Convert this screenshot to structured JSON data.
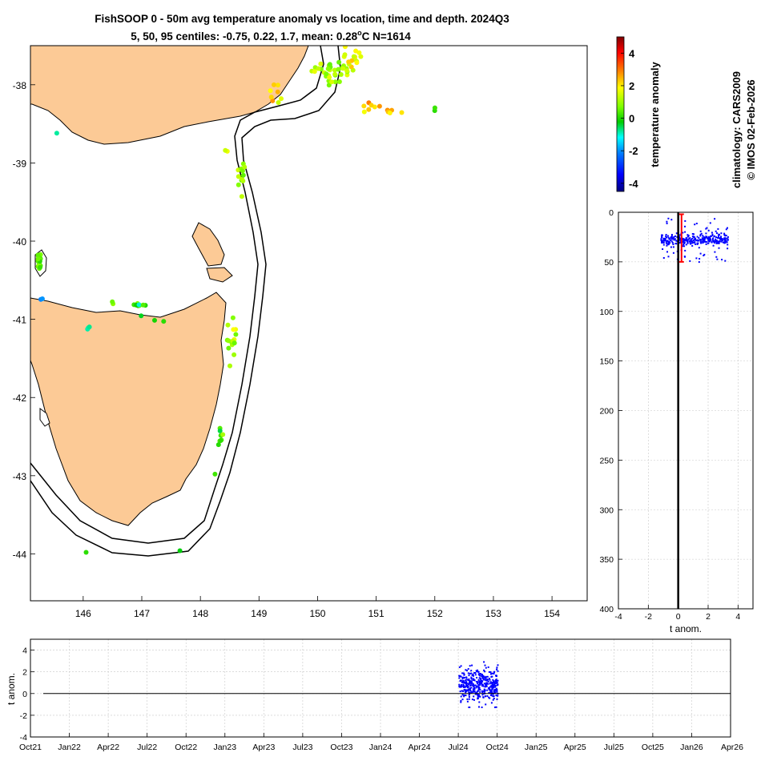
{
  "title": {
    "line1": "FishSOOP 0 - 50m avg temperature anomaly vs location, time and depth. 2024Q3",
    "line2_prefix": "5, 50, 95 centiles: -0.75, 0.22, 1.7, mean: 0.28",
    "line2_degree": "o",
    "line2_suffix": "C N=1614"
  },
  "side_text": {
    "climatology": "climatology: CARS2009",
    "copyright": "© IMOS 02-Feb-2026"
  },
  "colorbar": {
    "label": "temperature anomaly",
    "range": [
      -4.5,
      5
    ],
    "ticks": [
      "4",
      "2",
      "0",
      "-2",
      "-4"
    ],
    "tick_values": [
      4,
      2,
      0,
      -2,
      -4
    ],
    "colors": [
      "#00007f",
      "#0000ff",
      "#007fff",
      "#00ffff",
      "#00cc00",
      "#7fff00",
      "#ffff00",
      "#ff7f00",
      "#ff0000",
      "#7f0000"
    ]
  },
  "land_color": "#fcca96",
  "chart_data": [
    {
      "type": "scatter",
      "name": "map",
      "xlabel": "longitude",
      "ylabel": "latitude",
      "xlim": [
        145.1,
        154.6
      ],
      "ylim": [
        -44.6,
        -37.5
      ],
      "x_ticks": [
        "146",
        "147",
        "148",
        "149",
        "150",
        "151",
        "152",
        "153",
        "154"
      ],
      "x_tick_values": [
        146,
        147,
        148,
        149,
        150,
        151,
        152,
        153,
        154
      ],
      "y_ticks": [
        "-38",
        "-39",
        "-40",
        "-41",
        "-42",
        "-43",
        "-44"
      ],
      "y_tick_values": [
        -38,
        -39,
        -40,
        -41,
        -42,
        -43,
        -44
      ],
      "clusters": [
        {
          "lon": 150.25,
          "lat": -37.82,
          "n": 36,
          "spread": [
            0.35,
            0.14
          ],
          "anom": 1.1
        },
        {
          "lon": 150.55,
          "lat": -37.7,
          "n": 16,
          "spread": [
            0.25,
            0.15
          ],
          "anom": 1.8
        },
        {
          "lon": 151.0,
          "lat": -38.32,
          "n": 12,
          "spread": [
            0.45,
            0.12
          ],
          "anom": 2.2
        },
        {
          "lon": 149.3,
          "lat": -38.1,
          "n": 8,
          "spread": [
            0.12,
            0.18
          ],
          "anom": 2.0
        },
        {
          "lon": 152.0,
          "lat": -38.3,
          "n": 2,
          "spread": [
            0.01,
            0.05
          ],
          "anom": 0.3
        },
        {
          "lon": 148.7,
          "lat": -39.2,
          "n": 12,
          "spread": [
            0.07,
            0.2
          ],
          "anom": 0.9
        },
        {
          "lon": 148.45,
          "lat": -38.85,
          "n": 2,
          "spread": [
            0.05,
            0.02
          ],
          "anom": 1.6
        },
        {
          "lon": 145.25,
          "lat": -40.25,
          "n": 18,
          "spread": [
            0.04,
            0.12
          ],
          "anom": 0.5
        },
        {
          "lon": 145.3,
          "lat": -40.74,
          "n": 2,
          "spread": [
            0.02,
            0.01
          ],
          "anom": -1.5
        },
        {
          "lon": 146.95,
          "lat": -40.82,
          "n": 10,
          "spread": [
            0.13,
            0.03
          ],
          "anom": 0.2
        },
        {
          "lon": 146.5,
          "lat": -40.78,
          "n": 2,
          "spread": [
            0.02,
            0.02
          ],
          "anom": 0.6
        },
        {
          "lon": 146.1,
          "lat": -41.12,
          "n": 3,
          "spread": [
            0.05,
            0.05
          ],
          "anom": -0.4
        },
        {
          "lon": 147.2,
          "lat": -41.0,
          "n": 3,
          "spread": [
            0.2,
            0.04
          ],
          "anom": -0.2
        },
        {
          "lon": 148.55,
          "lat": -41.25,
          "n": 16,
          "spread": [
            0.09,
            0.3
          ],
          "anom": 0.9
        },
        {
          "lon": 148.35,
          "lat": -42.55,
          "n": 8,
          "spread": [
            0.04,
            0.15
          ],
          "anom": 0.1
        },
        {
          "lon": 148.25,
          "lat": -42.98,
          "n": 1,
          "spread": [
            0,
            0
          ],
          "anom": 0.2
        },
        {
          "lon": 146.05,
          "lat": -43.98,
          "n": 1,
          "spread": [
            0,
            0
          ],
          "anom": -0.2
        },
        {
          "lon": 147.65,
          "lat": -43.96,
          "n": 1,
          "spread": [
            0,
            0
          ],
          "anom": 0.0
        },
        {
          "lon": 145.55,
          "lat": -38.62,
          "n": 1,
          "spread": [
            0,
            0
          ],
          "anom": -0.5
        }
      ]
    },
    {
      "type": "scatter",
      "name": "depth_profile",
      "xlabel": "t anom.",
      "ylabel": "depth",
      "xlim": [
        -4,
        5
      ],
      "ylim": [
        400,
        0
      ],
      "x_ticks": [
        "-4",
        "-2",
        "0",
        "2",
        "4"
      ],
      "x_tick_values": [
        -4,
        -2,
        0,
        2,
        4
      ],
      "y_ticks": [
        "0",
        "50",
        "100",
        "150",
        "200",
        "250",
        "300",
        "350",
        "400"
      ],
      "y_tick_values": [
        0,
        50,
        100,
        150,
        200,
        250,
        300,
        350,
        400
      ],
      "points_n": 360,
      "depth_mean": 27,
      "anom_range": [
        -1.2,
        3.3
      ],
      "zero_line": 0,
      "centile_bar": {
        "median": 0.22,
        "low": -0.75,
        "high": 1.7,
        "top": 2,
        "bottom": 50
      }
    },
    {
      "type": "scatter",
      "name": "time_series",
      "xlabel": "",
      "ylabel": "t anom.",
      "ylim": [
        -4,
        5
      ],
      "y_ticks": [
        "4",
        "2",
        "0",
        "-2",
        "-4"
      ],
      "y_tick_values": [
        4,
        2,
        0,
        -2,
        -4
      ],
      "x_ticks": [
        "Oct21",
        "Jan22",
        "Apr22",
        "Jul22",
        "Oct22",
        "Jan23",
        "Apr23",
        "Jul23",
        "Oct23",
        "Jan24",
        "Apr24",
        "Jul24",
        "Oct24",
        "Jan25",
        "Apr25",
        "Jul25",
        "Oct25",
        "Jan26",
        "Apr26"
      ],
      "x_range_quarters": [
        0,
        18
      ],
      "points_n": 420,
      "data_window_quarters": [
        11.0,
        12.0
      ],
      "anom_range": [
        -1.2,
        3.3
      ],
      "zero_line": 0
    }
  ]
}
